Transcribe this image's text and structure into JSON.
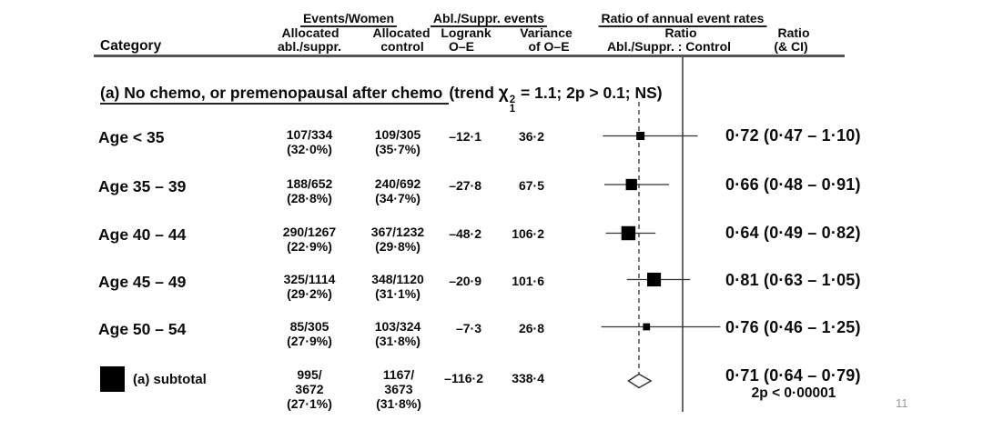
{
  "header": {
    "category": "Category",
    "group_events_women": "Events/Women",
    "col1_line1": "Allocated",
    "col1_line2": "abl./suppr.",
    "col2_line1": "Allocated",
    "col2_line2": "control",
    "group_abl_suppr_events": "Abl./Suppr. events",
    "col3_line1": "Logrank",
    "col3_line2": "O–E",
    "col4_line1": "Variance",
    "col4_line2": "of O–E",
    "group_ratio_rates": "Ratio of annual event rates",
    "ratio_sub_line1": "Ratio",
    "ratio_sub_line2": "Abl./Suppr. : Control",
    "ratio_ci_line1": "Ratio",
    "ratio_ci_line2": "(& CI)"
  },
  "section": {
    "title_underlined": "(a) No chemo, or premenopausal after chemo",
    "trend_prefix": "(trend ",
    "chi": "χ",
    "chi_sup": "2",
    "chi_sub": "1",
    "trend_suffix": " = 1.1; 2p > 0.1; NS)"
  },
  "rows": [
    {
      "category": "Age < 35",
      "c1a": "107/334",
      "c1b": "(32·0%)",
      "c2a": "109/305",
      "c2b": "(35·7%)",
      "oe": "–12·1",
      "var": "36·2",
      "ratio_text": "0·72 (0·47 – 1·10)"
    },
    {
      "category": "Age 35 – 39",
      "c1a": "188/652",
      "c1b": "(28·8%)",
      "c2a": "240/692",
      "c2b": "(34·7%)",
      "oe": "–27·8",
      "var": "67·5",
      "ratio_text": "0·66 (0·48 – 0·91)"
    },
    {
      "category": "Age 40 – 44",
      "c1a": "290/1267",
      "c1b": "(22·9%)",
      "c2a": "367/1232",
      "c2b": "(29·8%)",
      "oe": "–48·2",
      "var": "106·2",
      "ratio_text": "0·64 (0·49 – 0·82)"
    },
    {
      "category": "Age 45 – 49",
      "c1a": "325/1114",
      "c1b": "(29·2%)",
      "c2a": "348/1120",
      "c2b": "(31·1%)",
      "oe": "–20·9",
      "var": "101·6",
      "ratio_text": "0·81 (0·63 – 1·05)"
    },
    {
      "category": "Age 50 – 54",
      "c1a": "85/305",
      "c1b": "(27·9%)",
      "c2a": "103/324",
      "c2b": "(31·8%)",
      "oe": "–7·3",
      "var": "26·8",
      "ratio_text": "0·76 (0·46 – 1·25)"
    }
  ],
  "subtotal": {
    "label": "(a) subtotal",
    "c1a": "995/",
    "c1b": "3672",
    "c1c": "(27·1%)",
    "c2a": "1167/",
    "c2b": "3673",
    "c2c": "(31·8%)",
    "oe": "–116·2",
    "var": "338·4",
    "ratio_text": "0·71 (0·64 – 0·79)",
    "p_text": "2p < 0·00001"
  },
  "page_number": "11",
  "colors": {
    "text": "#0b0b0b",
    "rule": "#555555",
    "plot_lines": "#333333",
    "marker_fill": "#000000",
    "page_number": "#999999"
  },
  "chart_data": {
    "type": "forest",
    "title": "(a) No chemo, or premenopausal after chemo (trend χ1² = 1.1; 2p > 0.1; NS)",
    "x_scale": "linear",
    "null_line": 1.0,
    "dashed_reference_line": 0.71,
    "ratio_label": "Abl./Suppr. : Control",
    "rows": [
      {
        "label": "Age < 35",
        "events_abl_suppr": "107/334",
        "pct_abl_suppr": "32.0%",
        "events_control": "109/305",
        "pct_control": "35.7%",
        "o_minus_e": -12.1,
        "variance": 36.2,
        "ratio": 0.72,
        "ci_low": 0.47,
        "ci_high": 1.1
      },
      {
        "label": "Age 35 – 39",
        "events_abl_suppr": "188/652",
        "pct_abl_suppr": "28.8%",
        "events_control": "240/692",
        "pct_control": "34.7%",
        "o_minus_e": -27.8,
        "variance": 67.5,
        "ratio": 0.66,
        "ci_low": 0.48,
        "ci_high": 0.91
      },
      {
        "label": "Age 40 – 44",
        "events_abl_suppr": "290/1267",
        "pct_abl_suppr": "22.9%",
        "events_control": "367/1232",
        "pct_control": "29.8%",
        "o_minus_e": -48.2,
        "variance": 106.2,
        "ratio": 0.64,
        "ci_low": 0.49,
        "ci_high": 0.82
      },
      {
        "label": "Age 45 – 49",
        "events_abl_suppr": "325/1114",
        "pct_abl_suppr": "29.2%",
        "events_control": "348/1120",
        "pct_control": "31.1%",
        "o_minus_e": -20.9,
        "variance": 101.6,
        "ratio": 0.81,
        "ci_low": 0.63,
        "ci_high": 1.05
      },
      {
        "label": "Age 50 – 54",
        "events_abl_suppr": "85/305",
        "pct_abl_suppr": "27.9%",
        "events_control": "103/324",
        "pct_control": "31.8%",
        "o_minus_e": -7.3,
        "variance": 26.8,
        "ratio": 0.76,
        "ci_low": 0.46,
        "ci_high": 1.25
      }
    ],
    "subtotal": {
      "label": "(a) subtotal",
      "events_abl_suppr": "995/3672",
      "pct_abl_suppr": "27.1%",
      "events_control": "1167/3673",
      "pct_control": "31.8%",
      "o_minus_e": -116.2,
      "variance": 338.4,
      "ratio": 0.71,
      "ci_low": 0.64,
      "ci_high": 0.79,
      "p": "2p < 0.00001"
    }
  }
}
